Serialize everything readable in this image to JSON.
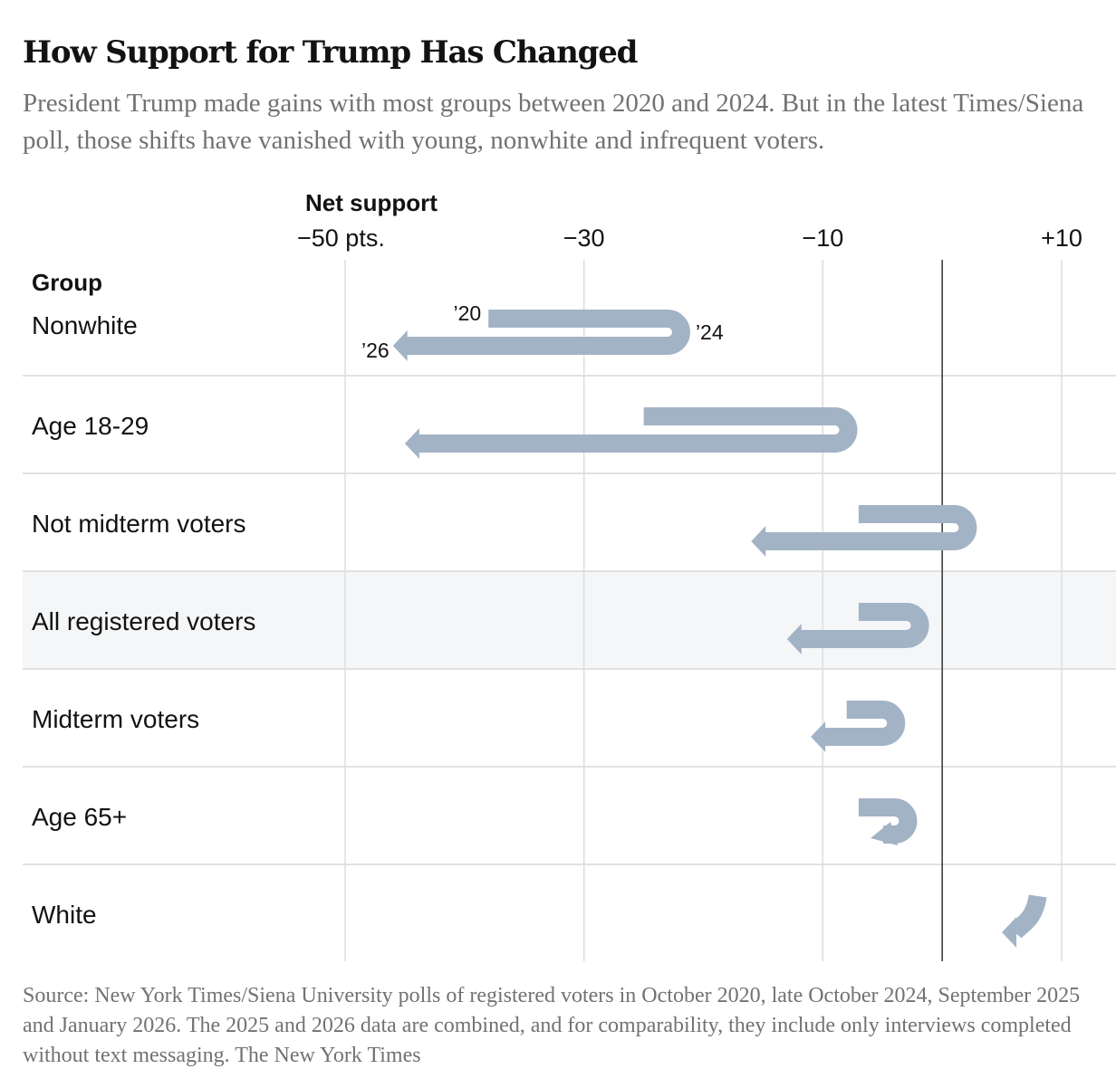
{
  "header": {
    "title": "How Support for Trump Has Changed",
    "subtitle": "President Trump made gains with most groups between 2020 and 2024. But in the latest Times/Siena poll, those shifts have vanished with young, nonwhite and infrequent voters."
  },
  "footer": {
    "source": "Source: New York Times/Siena University polls of registered voters in October 2020, late October 2024, September 2025 and January 2026. The 2025 and 2026 data are combined, and for comparability, they include only interviews completed without text messaging.  The New York Times"
  },
  "colors": {
    "arrow": "#a3b3c6",
    "highlight_row": "#f5f6f8",
    "gridline": "#dddddd",
    "zero_line": "#333333"
  },
  "chart_data": {
    "type": "arrow-path",
    "title": "How Support for Trump Has Changed",
    "xlabel": "Net support",
    "row_header": "Group",
    "xlim": [
      -50,
      10
    ],
    "ticks": [
      {
        "value": -50,
        "label": "−50 pts."
      },
      {
        "value": -30,
        "label": "−30"
      },
      {
        "value": -10,
        "label": "−10"
      },
      {
        "value": 10,
        "label": "+10"
      }
    ],
    "year_labels": {
      "y2020": "’20",
      "y2024": "’24",
      "y2026": "’26"
    },
    "series_keys": [
      "2020",
      "2024",
      "2025-26"
    ],
    "groups": [
      {
        "name": "Nonwhite",
        "v2020": -38,
        "v2024": -23,
        "v2026": -46,
        "highlight": false,
        "annotated": true
      },
      {
        "name": "Age 18-29",
        "v2020": -25,
        "v2024": -9,
        "v2026": -45,
        "highlight": false
      },
      {
        "name": "Not midterm voters",
        "v2020": -7,
        "v2024": 1,
        "v2026": -16,
        "highlight": false
      },
      {
        "name": "All registered voters",
        "v2020": -7,
        "v2024": -3,
        "v2026": -13,
        "highlight": true
      },
      {
        "name": "Midterm voters",
        "v2020": -8,
        "v2024": -5,
        "v2026": -11,
        "highlight": false
      },
      {
        "name": "Age 65+",
        "v2020": -7,
        "v2024": -4,
        "v2026": -6,
        "highlight": false
      },
      {
        "name": "White",
        "v2020": 8,
        "v2024": 8,
        "v2026": 5,
        "highlight": false
      }
    ]
  }
}
